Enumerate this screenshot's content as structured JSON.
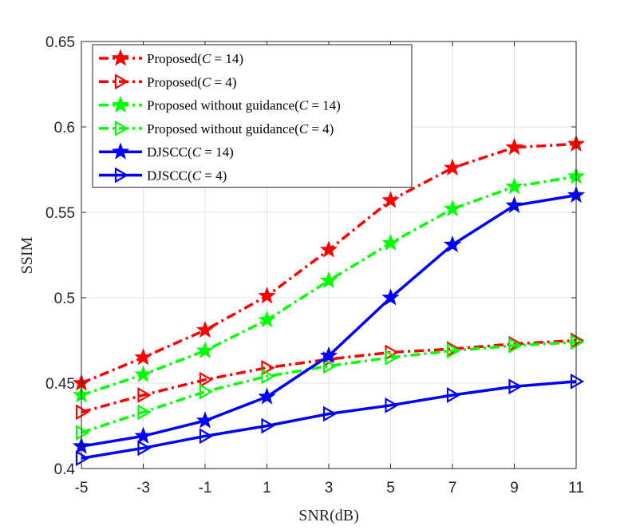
{
  "chart_data": {
    "type": "line",
    "title": "",
    "xlabel": "SNR(dB)",
    "ylabel": "SSIM",
    "x": [
      -5,
      -3,
      -1,
      1,
      3,
      5,
      7,
      9,
      11
    ],
    "x_tick_labels": [
      "-5",
      "-3",
      "-1",
      "1",
      "3",
      "5",
      "7",
      "9",
      "11"
    ],
    "y_tick_labels": [
      "0.4",
      "0.45",
      "0.5",
      "0.55",
      "0.6",
      "0.65"
    ],
    "y_ticks": [
      0.4,
      0.45,
      0.5,
      0.55,
      0.6,
      0.65
    ],
    "xlim": [
      -5,
      11
    ],
    "ylim": [
      0.4,
      0.65
    ],
    "grid": true,
    "legend_position": "top-left",
    "series": [
      {
        "name": "Proposed(C = 14)",
        "label_prefix": "Proposed(",
        "label_var": "C",
        "label_suffix": " = 14)",
        "color": "#ff0000",
        "line_style": "dashdot",
        "marker": "star",
        "values": [
          0.45,
          0.465,
          0.481,
          0.501,
          0.528,
          0.557,
          0.576,
          0.588,
          0.59
        ]
      },
      {
        "name": "Proposed(C = 4)",
        "label_prefix": "Proposed(",
        "label_var": "C",
        "label_suffix": " = 4)",
        "color": "#ff0000",
        "line_style": "dashdot",
        "marker": "triangle-right",
        "values": [
          0.433,
          0.443,
          0.452,
          0.459,
          0.464,
          0.468,
          0.47,
          0.473,
          0.475
        ]
      },
      {
        "name": "Proposed without guidance(C = 14)",
        "label_prefix": "Proposed without guidance(",
        "label_var": "C",
        "label_suffix": " = 14)",
        "color": "#00ff00",
        "line_style": "dashdot",
        "marker": "star",
        "values": [
          0.443,
          0.455,
          0.469,
          0.487,
          0.51,
          0.532,
          0.552,
          0.565,
          0.571
        ]
      },
      {
        "name": "Proposed without guidance(C = 4)",
        "label_prefix": "Proposed without guidance(",
        "label_var": "C",
        "label_suffix": " = 4)",
        "color": "#00ff00",
        "line_style": "dashdot",
        "marker": "triangle-right",
        "values": [
          0.421,
          0.433,
          0.445,
          0.454,
          0.46,
          0.465,
          0.469,
          0.472,
          0.474
        ]
      },
      {
        "name": "DJSCC(C = 14)",
        "label_prefix": "DJSCC(",
        "label_var": "C",
        "label_suffix": " = 14)",
        "color": "#0000ff",
        "line_style": "solid",
        "marker": "star",
        "values": [
          0.413,
          0.419,
          0.428,
          0.442,
          0.466,
          0.5,
          0.531,
          0.554,
          0.56
        ]
      },
      {
        "name": "DJSCC(C = 4)",
        "label_prefix": "DJSCC(",
        "label_var": "C",
        "label_suffix": " = 4)",
        "color": "#0000ff",
        "line_style": "solid",
        "marker": "triangle-right",
        "values": [
          0.406,
          0.412,
          0.419,
          0.425,
          0.432,
          0.437,
          0.443,
          0.448,
          0.451
        ]
      }
    ]
  }
}
